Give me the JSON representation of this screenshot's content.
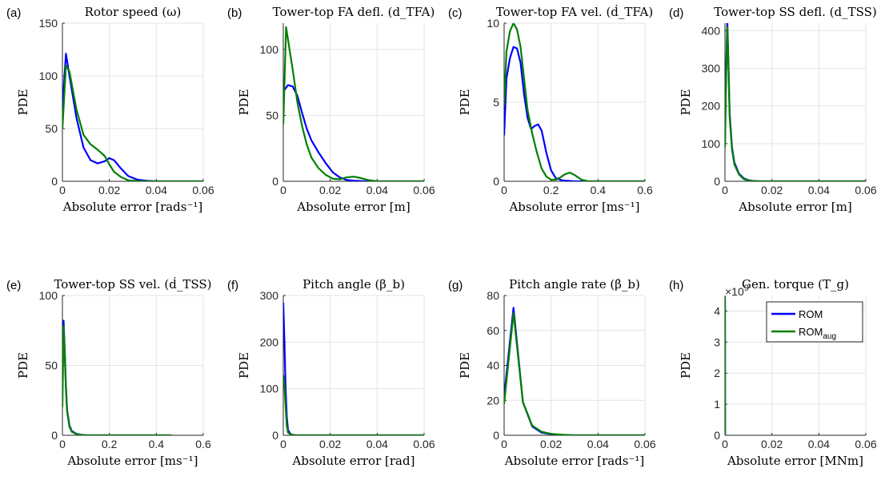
{
  "series_colors": {
    "ROM": "#0000ff",
    "ROM_aug": "#008000"
  },
  "legend": {
    "items": [
      {
        "key": "ROM",
        "label": "ROM",
        "sub": ""
      },
      {
        "key": "ROM_aug",
        "label": "ROM",
        "sub": "aug"
      }
    ]
  },
  "chart_data": [
    {
      "panel": "(a)",
      "type": "line",
      "title": "Rotor speed (ω)",
      "xlabel": "Absolute error [rads⁻¹]",
      "ylabel": "PDE",
      "xlim": [
        0,
        0.06
      ],
      "ylim": [
        0,
        150
      ],
      "xticks": [
        "0",
        "0.02",
        "0.04",
        "0.06"
      ],
      "yticks": [
        "0",
        "50",
        "100",
        "150"
      ],
      "grid": true,
      "series": [
        {
          "key": "ROM",
          "x": [
            0,
            0.0015,
            0.003,
            0.006,
            0.009,
            0.012,
            0.015,
            0.018,
            0.02,
            0.022,
            0.025,
            0.028,
            0.032,
            0.036,
            0.04,
            0.06
          ],
          "y": [
            70,
            121,
            100,
            60,
            32,
            20,
            17,
            19,
            22,
            20,
            12,
            5,
            1.5,
            0.5,
            0,
            0
          ]
        },
        {
          "key": "ROM_aug",
          "x": [
            0,
            0.0015,
            0.003,
            0.006,
            0.009,
            0.012,
            0.015,
            0.018,
            0.02,
            0.022,
            0.025,
            0.028,
            0.032,
            0.036,
            0.04,
            0.06
          ],
          "y": [
            50,
            110,
            104,
            68,
            44,
            35,
            30,
            24,
            16,
            9,
            4,
            1,
            0.3,
            0,
            0,
            0
          ]
        }
      ]
    },
    {
      "panel": "(b)",
      "type": "line",
      "title": "Tower-top FA defl. (d_TFA)",
      "xlabel": "Absolute error [m]",
      "ylabel": "PDE",
      "xlim": [
        0,
        0.06
      ],
      "ylim": [
        0,
        120
      ],
      "xticks": [
        "0",
        "0.02",
        "0.04",
        "0.06"
      ],
      "yticks": [
        "0",
        "50",
        "100"
      ],
      "grid": true,
      "series": [
        {
          "key": "ROM",
          "x": [
            0,
            0.0008,
            0.002,
            0.004,
            0.006,
            0.008,
            0.01,
            0.012,
            0.015,
            0.018,
            0.021,
            0.024,
            0.027,
            0.03,
            0.035,
            0.04,
            0.06
          ],
          "y": [
            68,
            70,
            73,
            72,
            65,
            52,
            40,
            31,
            22,
            14,
            7,
            3,
            1,
            0.5,
            0,
            0,
            0
          ]
        },
        {
          "key": "ROM_aug",
          "x": [
            0,
            0.0012,
            0.0025,
            0.004,
            0.006,
            0.008,
            0.01,
            0.012,
            0.015,
            0.018,
            0.021,
            0.024,
            0.027,
            0.03,
            0.033,
            0.036,
            0.04,
            0.06
          ],
          "y": [
            43,
            117,
            102,
            85,
            60,
            42,
            28,
            18,
            10,
            5,
            2,
            1.5,
            3,
            3.5,
            2.5,
            1,
            0,
            0
          ]
        }
      ]
    },
    {
      "panel": "(c)",
      "type": "line",
      "title": "Tower-top FA vel. (ḋ_TFA)",
      "xlabel": "Absolute error [ms⁻¹]",
      "ylabel": "PDE",
      "xlim": [
        0,
        0.6
      ],
      "ylim": [
        0,
        10
      ],
      "xticks": [
        "0",
        "0.2",
        "0.4",
        "0.6"
      ],
      "yticks": [
        "0",
        "5",
        "10"
      ],
      "grid": true,
      "series": [
        {
          "key": "ROM",
          "x": [
            0,
            0.01,
            0.025,
            0.04,
            0.055,
            0.07,
            0.085,
            0.1,
            0.115,
            0.13,
            0.145,
            0.16,
            0.18,
            0.2,
            0.22,
            0.25,
            0.3,
            0.6
          ],
          "y": [
            2.9,
            6.5,
            7.8,
            8.5,
            8.4,
            7.5,
            5.5,
            4,
            3.3,
            3.5,
            3.6,
            3.2,
            1.8,
            0.7,
            0.2,
            0.05,
            0,
            0
          ]
        },
        {
          "key": "ROM_aug",
          "x": [
            0,
            0.01,
            0.025,
            0.04,
            0.055,
            0.07,
            0.085,
            0.1,
            0.12,
            0.14,
            0.16,
            0.18,
            0.2,
            0.22,
            0.24,
            0.26,
            0.28,
            0.3,
            0.33,
            0.36,
            0.6
          ],
          "y": [
            4.8,
            8.2,
            9.5,
            10,
            9.6,
            8.5,
            6.5,
            4.5,
            3,
            1.8,
            0.8,
            0.3,
            0.1,
            0.1,
            0.25,
            0.45,
            0.55,
            0.4,
            0.1,
            0,
            0
          ]
        }
      ]
    },
    {
      "panel": "(d)",
      "type": "line",
      "title": "Tower-top SS defl. (d_TSS)",
      "xlabel": "Absolute error [m]",
      "ylabel": "PDE",
      "xlim": [
        0,
        0.06
      ],
      "ylim": [
        0,
        420
      ],
      "xticks": [
        "0",
        "0.02",
        "0.04",
        "0.06"
      ],
      "yticks": [
        "0",
        "100",
        "200",
        "300",
        "400"
      ],
      "grid": true,
      "series": [
        {
          "key": "ROM",
          "x": [
            0,
            0.0005,
            0.001,
            0.0015,
            0.002,
            0.003,
            0.004,
            0.006,
            0.008,
            0.01,
            0.012,
            0.015,
            0.02,
            0.06
          ],
          "y": [
            100,
            300,
            425,
            310,
            180,
            90,
            50,
            20,
            8,
            3,
            1,
            0,
            0,
            0
          ]
        },
        {
          "key": "ROM_aug",
          "x": [
            0,
            0.0005,
            0.001,
            0.0015,
            0.002,
            0.003,
            0.004,
            0.006,
            0.008,
            0.01,
            0.012,
            0.015,
            0.02,
            0.06
          ],
          "y": [
            90,
            280,
            410,
            300,
            170,
            85,
            45,
            18,
            6,
            2,
            0.5,
            0,
            0,
            0
          ]
        }
      ]
    },
    {
      "panel": "(e)",
      "type": "line",
      "title": "Tower-top SS vel. (ḋ_TSS)",
      "xlabel": "Absolute error [ms⁻¹]",
      "ylabel": "PDE",
      "xlim": [
        0,
        0.6
      ],
      "ylim": [
        0,
        100
      ],
      "xticks": [
        "0",
        "0.2",
        "0.4",
        "0.6"
      ],
      "yticks": [
        "0",
        "50",
        "100"
      ],
      "grid": true,
      "series": [
        {
          "key": "ROM",
          "x": [
            0,
            0.005,
            0.01,
            0.015,
            0.02,
            0.03,
            0.04,
            0.06,
            0.08,
            0.1,
            0.15,
            0.2,
            0.3,
            0.465
          ],
          "y": [
            55,
            82,
            60,
            35,
            18,
            7,
            3,
            1,
            0.4,
            0.1,
            0,
            0,
            0,
            0
          ]
        },
        {
          "key": "ROM_aug",
          "x": [
            0,
            0.005,
            0.01,
            0.015,
            0.02,
            0.03,
            0.04,
            0.06,
            0.08,
            0.1,
            0.15,
            0.2,
            0.3,
            0.465
          ],
          "y": [
            20,
            78,
            58,
            33,
            17,
            6,
            2.5,
            0.8,
            0.3,
            0.1,
            0,
            0,
            0,
            0
          ]
        }
      ]
    },
    {
      "panel": "(f)",
      "type": "line",
      "title": "Pitch angle (β_b)",
      "xlabel": "Absolute error [rad]",
      "ylabel": "PDE",
      "xlim": [
        0,
        0.06
      ],
      "ylim": [
        0,
        300
      ],
      "xticks": [
        "0",
        "0.02",
        "0.04",
        "0.06"
      ],
      "yticks": [
        "0",
        "100",
        "200",
        "300"
      ],
      "grid": true,
      "series": [
        {
          "key": "ROM",
          "x": [
            0,
            0.0005,
            0.001,
            0.0015,
            0.002,
            0.003,
            0.004,
            0.006,
            0.06
          ],
          "y": [
            285,
            200,
            100,
            40,
            12,
            3,
            1,
            0,
            0
          ]
        },
        {
          "key": "ROM_aug",
          "x": [
            0,
            0.0005,
            0.001,
            0.0015,
            0.002,
            0.003,
            0.004,
            0.006,
            0.06
          ],
          "y": [
            130,
            110,
            60,
            20,
            6,
            2,
            0.5,
            0,
            0
          ]
        }
      ]
    },
    {
      "panel": "(g)",
      "type": "line",
      "title": "Pitch angle rate (β̇_b)",
      "xlabel": "Absolute error [rads⁻¹]",
      "ylabel": "PDE",
      "xlim": [
        0,
        0.06
      ],
      "ylim": [
        0,
        80
      ],
      "xticks": [
        "0",
        "0.02",
        "0.04",
        "0.06"
      ],
      "yticks": [
        "0",
        "20",
        "40",
        "60",
        "80"
      ],
      "grid": true,
      "series": [
        {
          "key": "ROM",
          "x": [
            0,
            0.004,
            0.008,
            0.012,
            0.016,
            0.02,
            0.025,
            0.03,
            0.04,
            0.06
          ],
          "y": [
            22,
            73,
            19,
            5,
            1.5,
            0.6,
            0.2,
            0,
            0,
            0
          ]
        },
        {
          "key": "ROM_aug",
          "x": [
            0,
            0.004,
            0.008,
            0.012,
            0.016,
            0.02,
            0.025,
            0.03,
            0.04,
            0.06
          ],
          "y": [
            18,
            70,
            19,
            5.5,
            2,
            0.8,
            0.3,
            0,
            0,
            0
          ]
        }
      ]
    },
    {
      "panel": "(h)",
      "type": "line",
      "title": "Gen. torque (T_g)",
      "xlabel": "Absolute error [MNm]",
      "ylabel": "PDE",
      "xlim": [
        0,
        0.06
      ],
      "ylim": [
        0,
        4.5
      ],
      "xticks": [
        "0",
        "0.02",
        "0.04",
        "0.06"
      ],
      "yticks": [
        "0",
        "1",
        "2",
        "3",
        "4"
      ],
      "exponent": "×10",
      "exponent_power": "9",
      "grid": true,
      "series": [
        {
          "key": "ROM",
          "x": [
            0,
            0,
            4e-05,
            0.0001
          ],
          "y": [
            0,
            4.45,
            0,
            0
          ]
        },
        {
          "key": "ROM_aug",
          "x": [
            0,
            0,
            4e-05,
            0.0001
          ],
          "y": [
            0,
            4.45,
            0,
            0
          ]
        }
      ]
    }
  ]
}
